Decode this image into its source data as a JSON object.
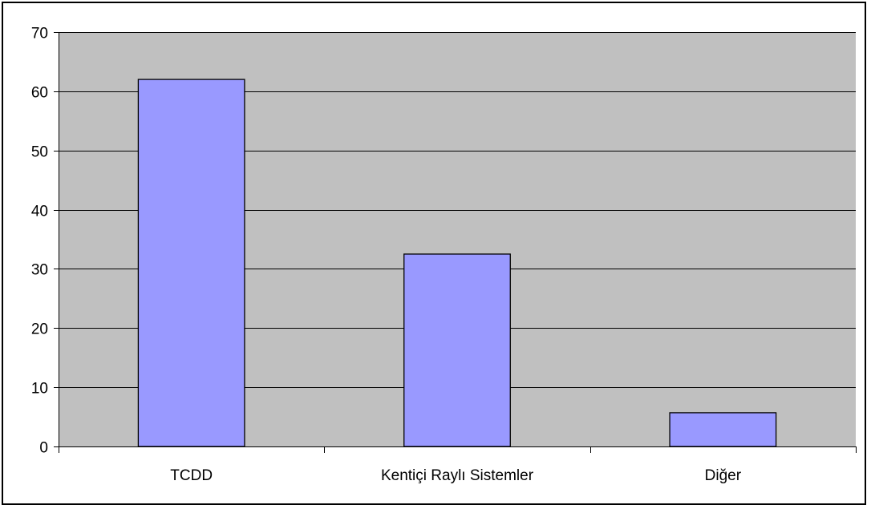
{
  "chart_data": {
    "type": "bar",
    "title": "",
    "xlabel": "",
    "ylabel": "",
    "categories": [
      "TCDD",
      "Kentiçi Raylı Sistemler",
      "Diğer"
    ],
    "values": [
      62,
      32.5,
      5.7
    ],
    "ylim": [
      0,
      70
    ],
    "yticks": [
      0,
      10,
      20,
      30,
      40,
      50,
      60,
      70
    ],
    "grid": true,
    "legend": "none",
    "colors": {
      "bar_fill": "#9999ff",
      "bar_stroke": "#000000",
      "plot_background": "#c0c0c0",
      "gridline": "#000000"
    }
  }
}
